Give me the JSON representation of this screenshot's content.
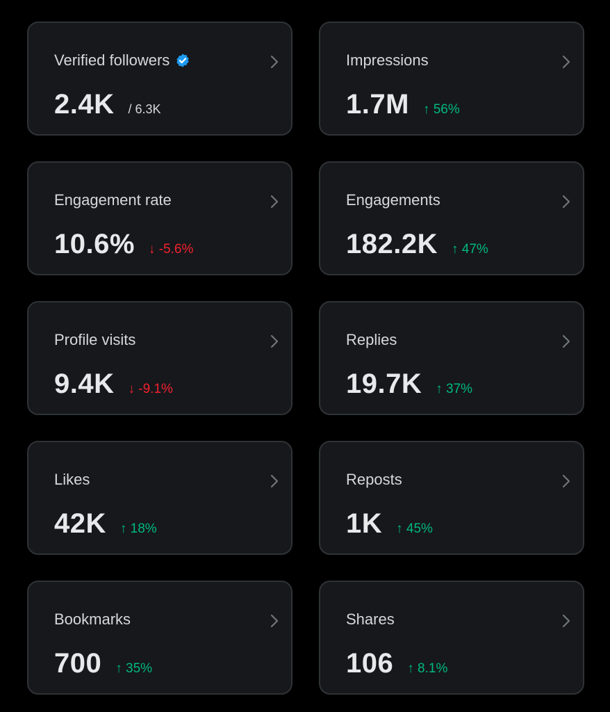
{
  "colors": {
    "background": "#000000",
    "card": "#16181c",
    "card_border": "#2f3336",
    "up": "#00ba7c",
    "down": "#f4212e",
    "verified": "#1d9bf0"
  },
  "cards": [
    {
      "title": "Verified followers",
      "value": "2.4K",
      "sub": "/ 6.3K"
    },
    {
      "title": "Impressions",
      "value": "1.7M",
      "delta": "↑ 56%",
      "trend": "up"
    },
    {
      "title": "Engagement rate",
      "value": "10.6%",
      "delta": "↓ -5.6%",
      "trend": "down"
    },
    {
      "title": "Engagements",
      "value": "182.2K",
      "delta": "↑ 47%",
      "trend": "up"
    },
    {
      "title": "Profile visits",
      "value": "9.4K",
      "delta": "↓ -9.1%",
      "trend": "down"
    },
    {
      "title": "Replies",
      "value": "19.7K",
      "delta": "↑ 37%",
      "trend": "up"
    },
    {
      "title": "Likes",
      "value": "42K",
      "delta": "↑ 18%",
      "trend": "up"
    },
    {
      "title": "Reposts",
      "value": "1K",
      "delta": "↑ 45%",
      "trend": "up"
    },
    {
      "title": "Bookmarks",
      "value": "700",
      "delta": "↑ 35%",
      "trend": "up"
    },
    {
      "title": "Shares",
      "value": "106",
      "delta": "↑ 8.1%",
      "trend": "up"
    }
  ]
}
